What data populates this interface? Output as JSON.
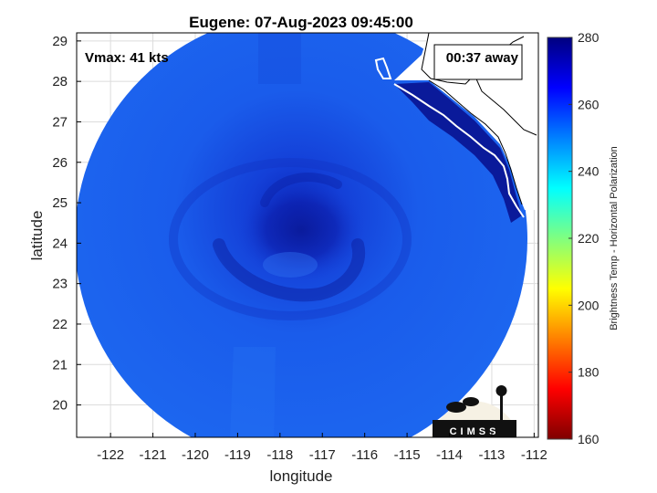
{
  "plot": {
    "title": "Eugene: 07-Aug-2023 09:45:00",
    "xlabel": "longitude",
    "ylabel": "latitude",
    "vmax_label": "Vmax: 41 kts",
    "away_label": "00:37 away",
    "x_ticks": [
      "-122",
      "-121",
      "-120",
      "-119",
      "-118",
      "-117",
      "-116",
      "-115",
      "-114",
      "-113",
      "-112"
    ],
    "y_ticks": [
      "20",
      "21",
      "22",
      "23",
      "24",
      "25",
      "26",
      "27",
      "28",
      "29"
    ],
    "xlim": [
      -122.8,
      -111.9
    ],
    "ylim": [
      19.2,
      29.2
    ],
    "storm_center": [
      -117.4,
      24.6
    ],
    "grid": true
  },
  "colorbar": {
    "label": "Brightness Temp - Horizontal Polarization",
    "ticks": [
      "160",
      "180",
      "200",
      "220",
      "240",
      "260",
      "280"
    ],
    "range": [
      160,
      280
    ],
    "colors": [
      "#7f0000",
      "#ff0000",
      "#ff8000",
      "#ffff00",
      "#80ff80",
      "#00ffff",
      "#0080ff",
      "#0000ff",
      "#00007f"
    ]
  },
  "logo": {
    "text": "CIMSS",
    "icon": "cimss-logo-icon"
  }
}
